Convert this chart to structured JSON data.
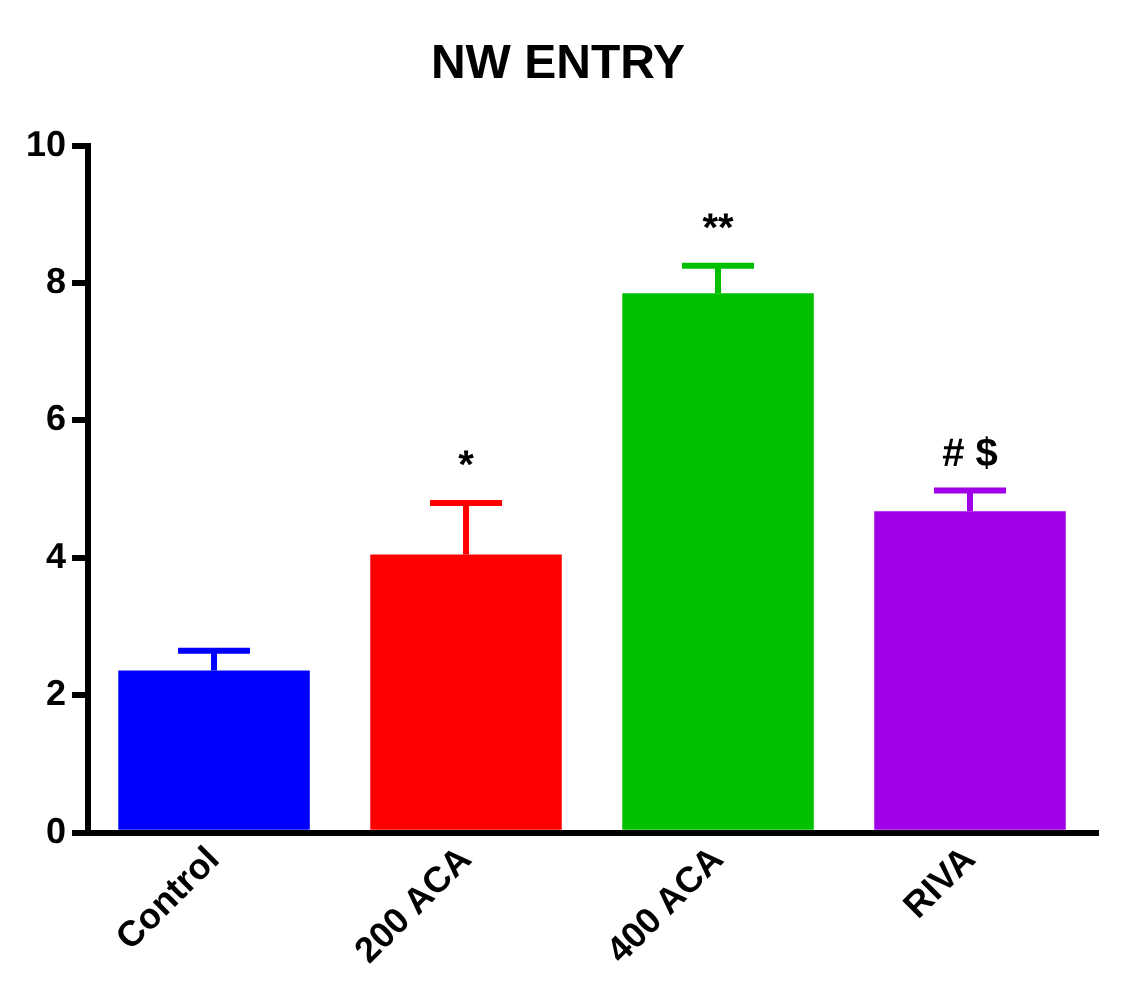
{
  "chart_data": {
    "type": "bar",
    "title": "NW ENTRY",
    "categories": [
      "Control",
      "200 ACA",
      "400 ACA",
      "RIVA"
    ],
    "values": [
      2.36,
      4.05,
      7.85,
      4.68
    ],
    "colors": [
      "#0000ff",
      "#ff0000",
      "#00c000",
      "#a000e8"
    ],
    "errors": [
      [
        2.36,
        2.65
      ],
      [
        4.05,
        4.8
      ],
      [
        7.85,
        8.25
      ],
      [
        4.68,
        4.98
      ]
    ],
    "ylim": [
      0,
      10
    ],
    "yticks": [
      0,
      2,
      4,
      6,
      8,
      10
    ],
    "grid": false,
    "legend": false,
    "annotations": [
      {
        "text": "*",
        "x": "200 ACA",
        "y": 4.8
      },
      {
        "text": "**",
        "x": "400 ACA",
        "y": 8.25
      },
      {
        "text": "# $",
        "x": "RIVA",
        "y": 4.98
      }
    ]
  }
}
